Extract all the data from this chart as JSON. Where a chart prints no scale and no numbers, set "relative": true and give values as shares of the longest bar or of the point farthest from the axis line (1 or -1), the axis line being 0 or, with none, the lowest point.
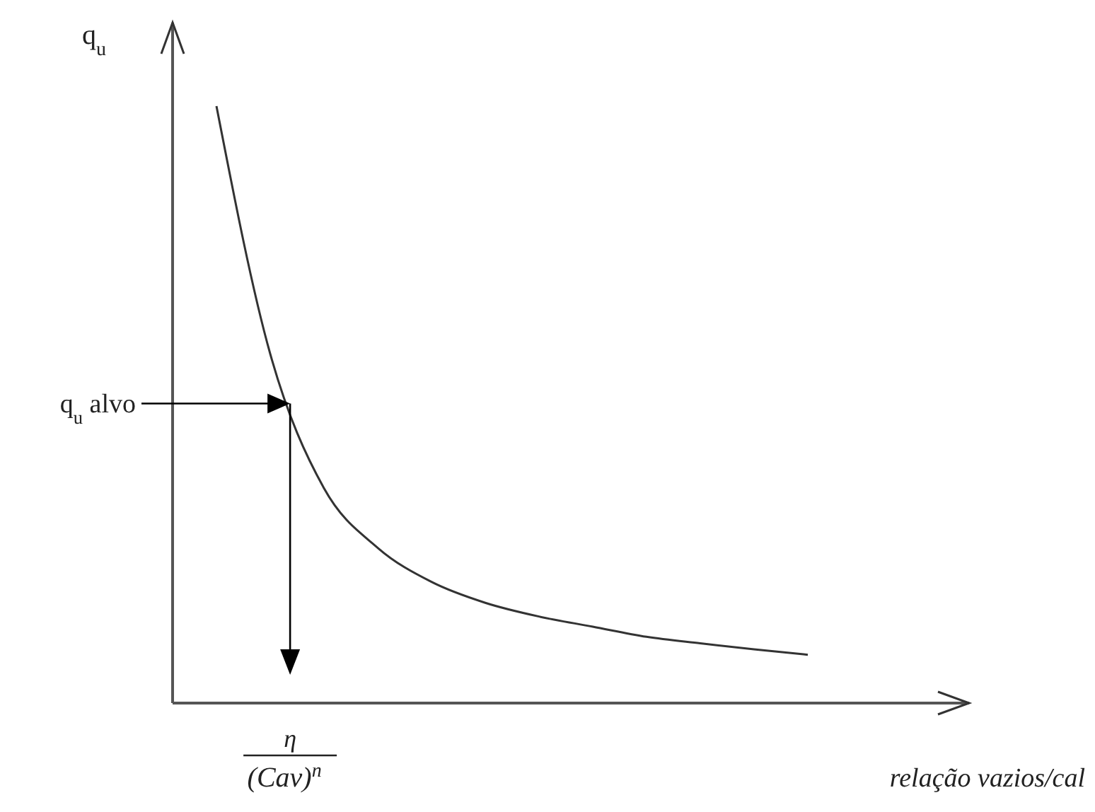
{
  "chart_data": {
    "type": "line",
    "relative": true,
    "xlabel": "relação vazios/cal",
    "ylabel": "q$_{u}$",
    "categories": [
      null,
      null,
      null,
      null,
      null,
      null,
      null,
      null,
      null,
      null,
      null,
      null
    ],
    "series": [
      {
        "color": "#333333",
        "values": [
          1,
          0.585,
          0.36,
          0.26,
          0.203,
          0.168,
          0.145,
          0.128,
          0.111,
          0.1,
          0.09,
          0.081
        ]
      }
    ],
    "annotations": [
      "q$_{u}$ alvo",
      "η",
      "(Cav)$^{n}$"
    ],
    "marker": "none",
    "line_style": "solid"
  }
}
